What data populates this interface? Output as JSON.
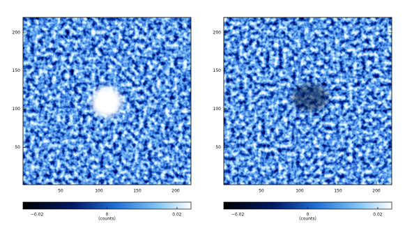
{
  "chart_data": [
    {
      "type": "image",
      "xlim": [
        1,
        220
      ],
      "ylim": [
        1,
        220
      ],
      "xticks": [
        50,
        100,
        150,
        200
      ],
      "yticks": [
        50,
        100,
        150,
        200
      ],
      "colorbar": {
        "clim": [
          -0.024,
          0.024
        ],
        "ticks": [
          {
            "value": -0.02,
            "label": "−0.02"
          },
          0,
          0.02
        ],
        "label": "(counts)"
      }
    },
    {
      "type": "image",
      "xlim": [
        1,
        220
      ],
      "ylim": [
        1,
        220
      ],
      "xticks": [
        50,
        100,
        150,
        200
      ],
      "yticks": [
        50,
        100,
        150,
        200
      ],
      "colorbar": {
        "clim": [
          -0.024,
          0.024
        ],
        "ticks": [
          {
            "value": -0.02,
            "label": "−0.02"
          },
          0,
          0.02
        ],
        "label": "(counts)"
      }
    }
  ]
}
